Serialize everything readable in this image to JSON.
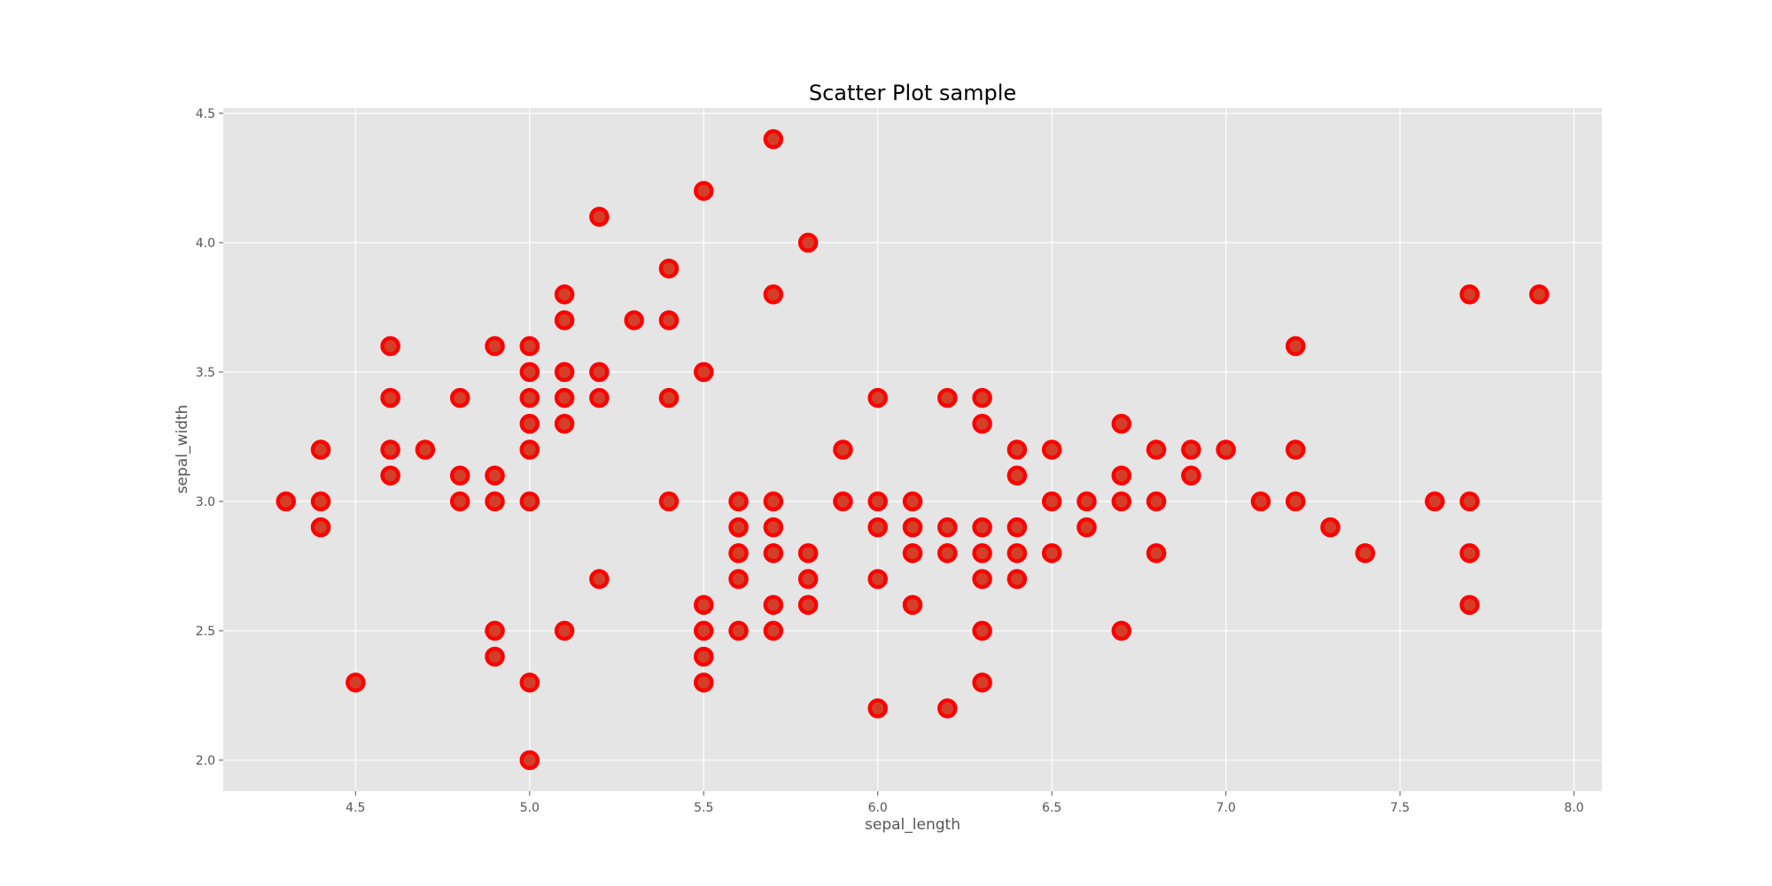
{
  "chart_data": {
    "type": "scatter",
    "title": "Scatter Plot sample",
    "xlabel": "sepal_length",
    "ylabel": "sepal_width",
    "xlim": [
      4.12,
      8.08
    ],
    "ylim": [
      1.88,
      4.52
    ],
    "xticks": [
      "4.5",
      "5.0",
      "5.5",
      "6.0",
      "6.5",
      "7.0",
      "7.5",
      "8.0"
    ],
    "yticks": [
      "2.0",
      "2.5",
      "3.0",
      "3.5",
      "4.0",
      "4.5"
    ],
    "grid": true,
    "colors": {
      "background": "#e5e5e5",
      "grid": "#ffffff",
      "marker_face": "#d2402a",
      "marker_edge": "#ff0000",
      "text": "#555555"
    },
    "points": [
      [
        4.3,
        3.0
      ],
      [
        4.4,
        3.2
      ],
      [
        4.4,
        3.0
      ],
      [
        4.4,
        2.9
      ],
      [
        4.5,
        2.3
      ],
      [
        4.6,
        3.6
      ],
      [
        4.6,
        3.4
      ],
      [
        4.6,
        3.2
      ],
      [
        4.6,
        3.1
      ],
      [
        4.7,
        3.2
      ],
      [
        4.8,
        3.4
      ],
      [
        4.8,
        3.1
      ],
      [
        4.8,
        3.0
      ],
      [
        4.9,
        3.6
      ],
      [
        4.9,
        3.1
      ],
      [
        4.9,
        3.0
      ],
      [
        4.9,
        2.5
      ],
      [
        4.9,
        2.4
      ],
      [
        5.0,
        3.6
      ],
      [
        5.0,
        3.5
      ],
      [
        5.0,
        3.4
      ],
      [
        5.0,
        3.3
      ],
      [
        5.0,
        3.2
      ],
      [
        5.0,
        3.0
      ],
      [
        5.0,
        2.3
      ],
      [
        5.0,
        2.0
      ],
      [
        5.1,
        3.8
      ],
      [
        5.1,
        3.7
      ],
      [
        5.1,
        3.5
      ],
      [
        5.1,
        3.4
      ],
      [
        5.1,
        3.3
      ],
      [
        5.1,
        2.5
      ],
      [
        5.2,
        4.1
      ],
      [
        5.2,
        3.5
      ],
      [
        5.2,
        3.4
      ],
      [
        5.2,
        2.7
      ],
      [
        5.3,
        3.7
      ],
      [
        5.4,
        3.9
      ],
      [
        5.4,
        3.7
      ],
      [
        5.4,
        3.4
      ],
      [
        5.4,
        3.0
      ],
      [
        5.5,
        4.2
      ],
      [
        5.5,
        3.5
      ],
      [
        5.5,
        2.6
      ],
      [
        5.5,
        2.5
      ],
      [
        5.5,
        2.4
      ],
      [
        5.5,
        2.3
      ],
      [
        5.6,
        3.0
      ],
      [
        5.6,
        2.9
      ],
      [
        5.6,
        2.8
      ],
      [
        5.6,
        2.7
      ],
      [
        5.6,
        2.5
      ],
      [
        5.7,
        4.4
      ],
      [
        5.7,
        3.8
      ],
      [
        5.7,
        3.0
      ],
      [
        5.7,
        2.9
      ],
      [
        5.7,
        2.8
      ],
      [
        5.7,
        2.6
      ],
      [
        5.7,
        2.5
      ],
      [
        5.8,
        4.0
      ],
      [
        5.8,
        2.8
      ],
      [
        5.8,
        2.7
      ],
      [
        5.8,
        2.6
      ],
      [
        5.9,
        3.2
      ],
      [
        5.9,
        3.0
      ],
      [
        6.0,
        3.4
      ],
      [
        6.0,
        3.0
      ],
      [
        6.0,
        2.9
      ],
      [
        6.0,
        2.7
      ],
      [
        6.0,
        2.2
      ],
      [
        6.1,
        3.0
      ],
      [
        6.1,
        2.9
      ],
      [
        6.1,
        2.8
      ],
      [
        6.1,
        2.6
      ],
      [
        6.2,
        3.4
      ],
      [
        6.2,
        2.9
      ],
      [
        6.2,
        2.8
      ],
      [
        6.2,
        2.2
      ],
      [
        6.3,
        3.4
      ],
      [
        6.3,
        3.3
      ],
      [
        6.3,
        2.9
      ],
      [
        6.3,
        2.8
      ],
      [
        6.3,
        2.7
      ],
      [
        6.3,
        2.5
      ],
      [
        6.3,
        2.3
      ],
      [
        6.4,
        3.2
      ],
      [
        6.4,
        3.1
      ],
      [
        6.4,
        2.9
      ],
      [
        6.4,
        2.8
      ],
      [
        6.4,
        2.7
      ],
      [
        6.5,
        3.2
      ],
      [
        6.5,
        3.0
      ],
      [
        6.5,
        2.8
      ],
      [
        6.6,
        3.0
      ],
      [
        6.6,
        2.9
      ],
      [
        6.7,
        3.3
      ],
      [
        6.7,
        3.1
      ],
      [
        6.7,
        3.0
      ],
      [
        6.7,
        2.5
      ],
      [
        6.8,
        3.2
      ],
      [
        6.8,
        3.0
      ],
      [
        6.8,
        2.8
      ],
      [
        6.9,
        3.2
      ],
      [
        6.9,
        3.1
      ],
      [
        7.0,
        3.2
      ],
      [
        7.1,
        3.0
      ],
      [
        7.2,
        3.6
      ],
      [
        7.2,
        3.2
      ],
      [
        7.2,
        3.0
      ],
      [
        7.3,
        2.9
      ],
      [
        7.4,
        2.8
      ],
      [
        7.6,
        3.0
      ],
      [
        7.7,
        3.8
      ],
      [
        7.7,
        3.0
      ],
      [
        7.7,
        2.8
      ],
      [
        7.7,
        2.6
      ],
      [
        7.9,
        3.8
      ]
    ]
  }
}
